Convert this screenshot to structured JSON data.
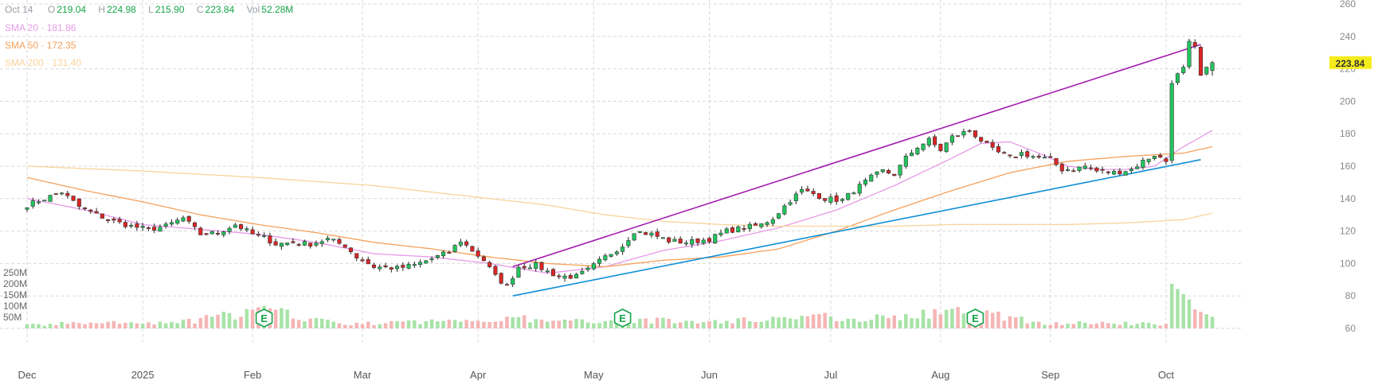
{
  "header": {
    "date": "Oct 14",
    "open_label": "O",
    "open": "219.04",
    "high_label": "H",
    "high": "224.98",
    "low_label": "L",
    "low": "215.90",
    "close_label": "C",
    "close": "223.84",
    "vol_label": "Vol",
    "vol": "52.28M"
  },
  "indicators": [
    {
      "label": "SMA 20",
      "sep": "·",
      "value": "181.86",
      "color": "#e79ae7"
    },
    {
      "label": "SMA 50",
      "sep": "·",
      "value": "172.35",
      "color": "#f5a05a"
    },
    {
      "label": "SMA 200",
      "sep": "·",
      "value": "131.40",
      "color": "#f8d49a"
    }
  ],
  "price_badge": "223.84",
  "colors": {
    "up": "#22c55e",
    "down": "#dc2626",
    "vol_up": "#a7e3a7",
    "vol_down": "#f5b5b5",
    "upper_trend": "#a21caf",
    "lower_trend": "#0e8fd6",
    "badge": "#f5ec1b",
    "grid": "#d9d9d9"
  },
  "chart_data": {
    "type": "candlestick",
    "y_axis": {
      "ticks": [
        60,
        80,
        100,
        120,
        140,
        160,
        180,
        200,
        220,
        240,
        260
      ],
      "range": [
        60,
        260
      ]
    },
    "volume_axis": {
      "ticks": [
        "50M",
        "100M",
        "150M",
        "200M",
        "250M"
      ],
      "values": [
        50,
        100,
        150,
        200,
        250
      ]
    },
    "x_axis": {
      "labels": [
        "Dec",
        "2025",
        "Feb",
        "Mar",
        "Apr",
        "May",
        "Jun",
        "Jul",
        "Aug",
        "Sep",
        "Oct"
      ]
    },
    "x_ticks": [
      {
        "label": "Dec",
        "index": 0
      },
      {
        "label": "2025",
        "index": 20
      },
      {
        "label": "Feb",
        "index": 39
      },
      {
        "label": "Mar",
        "index": 58
      },
      {
        "label": "Apr",
        "index": 78
      },
      {
        "label": "May",
        "index": 98
      },
      {
        "label": "Jun",
        "index": 118
      },
      {
        "label": "Jul",
        "index": 139
      },
      {
        "label": "Aug",
        "index": 158
      },
      {
        "label": "Sep",
        "index": 177
      },
      {
        "label": "Oct",
        "index": 197
      }
    ],
    "earnings_markers": [
      {
        "label": "E",
        "index": 41
      },
      {
        "label": "E",
        "index": 103
      },
      {
        "label": "E",
        "index": 164
      }
    ],
    "trendlines": [
      {
        "name": "upper",
        "from": {
          "index": 84,
          "price": 98
        },
        "to": {
          "index": 203,
          "price": 235
        }
      },
      {
        "name": "lower",
        "from": {
          "index": 84,
          "price": 80
        },
        "to": {
          "index": 203,
          "price": 164
        }
      }
    ],
    "anchors": {
      "close": [
        [
          0,
          136
        ],
        [
          3,
          140
        ],
        [
          6,
          144
        ],
        [
          9,
          135
        ],
        [
          12,
          130
        ],
        [
          15,
          126
        ],
        [
          18,
          123
        ],
        [
          21,
          121
        ],
        [
          24,
          123
        ],
        [
          27,
          128
        ],
        [
          30,
          118
        ],
        [
          33,
          119
        ],
        [
          36,
          124
        ],
        [
          39,
          118
        ],
        [
          41,
          116
        ],
        [
          43,
          112
        ],
        [
          46,
          113
        ],
        [
          49,
          112
        ],
        [
          52,
          115
        ],
        [
          55,
          111
        ],
        [
          57,
          104
        ],
        [
          60,
          98
        ],
        [
          64,
          97
        ],
        [
          67,
          99
        ],
        [
          70,
          103
        ],
        [
          73,
          107
        ],
        [
          75,
          114
        ],
        [
          77,
          108
        ],
        [
          79,
          102
        ],
        [
          81,
          92
        ],
        [
          83,
          86
        ],
        [
          85,
          98
        ],
        [
          88,
          99
        ],
        [
          90,
          95
        ],
        [
          92,
          92
        ],
        [
          95,
          92
        ],
        [
          97,
          96
        ],
        [
          100,
          104
        ],
        [
          103,
          111
        ],
        [
          105,
          120
        ],
        [
          108,
          118
        ],
        [
          111,
          114
        ],
        [
          114,
          113
        ],
        [
          118,
          115
        ],
        [
          121,
          120
        ],
        [
          124,
          122
        ],
        [
          127,
          124
        ],
        [
          129,
          128
        ],
        [
          132,
          139
        ],
        [
          134,
          145
        ],
        [
          136,
          143
        ],
        [
          138,
          140
        ],
        [
          141,
          139
        ],
        [
          143,
          145
        ],
        [
          146,
          153
        ],
        [
          148,
          157
        ],
        [
          150,
          155
        ],
        [
          152,
          165
        ],
        [
          154,
          172
        ],
        [
          156,
          176
        ],
        [
          158,
          170
        ],
        [
          160,
          178
        ],
        [
          163,
          182
        ],
        [
          165,
          176
        ],
        [
          167,
          170
        ],
        [
          170,
          165
        ],
        [
          172,
          168
        ],
        [
          174,
          166
        ],
        [
          177,
          164
        ],
        [
          179,
          158
        ],
        [
          181,
          158
        ],
        [
          183,
          160
        ],
        [
          185,
          157
        ],
        [
          188,
          156
        ],
        [
          191,
          158
        ],
        [
          193,
          163
        ],
        [
          195,
          167
        ],
        [
          197,
          163
        ],
        [
          198,
          211
        ],
        [
          199,
          217
        ],
        [
          200,
          221
        ],
        [
          201,
          237
        ],
        [
          202,
          234
        ],
        [
          203,
          216
        ],
        [
          204,
          221
        ],
        [
          205,
          223.84
        ]
      ],
      "volume": [
        [
          0,
          14
        ],
        [
          10,
          25
        ],
        [
          25,
          22
        ],
        [
          41,
          80
        ],
        [
          55,
          18
        ],
        [
          78,
          38
        ],
        [
          84,
          50
        ],
        [
          90,
          28
        ],
        [
          103,
          40
        ],
        [
          118,
          28
        ],
        [
          135,
          55
        ],
        [
          145,
          45
        ],
        [
          164,
          75
        ],
        [
          175,
          25
        ],
        [
          190,
          22
        ],
        [
          197,
          18
        ],
        [
          198,
          200
        ],
        [
          201,
          130
        ],
        [
          202,
          85
        ],
        [
          205,
          52
        ]
      ],
      "sma20": [
        [
          0,
          140
        ],
        [
          10,
          133
        ],
        [
          20,
          124
        ],
        [
          30,
          121
        ],
        [
          40,
          118
        ],
        [
          50,
          113
        ],
        [
          60,
          106
        ],
        [
          70,
          104
        ],
        [
          80,
          100
        ],
        [
          90,
          94
        ],
        [
          100,
          98
        ],
        [
          110,
          108
        ],
        [
          120,
          114
        ],
        [
          130,
          122
        ],
        [
          140,
          133
        ],
        [
          150,
          148
        ],
        [
          160,
          165
        ],
        [
          165,
          174
        ],
        [
          170,
          175
        ],
        [
          175,
          168
        ],
        [
          180,
          160
        ],
        [
          185,
          158
        ],
        [
          190,
          158
        ],
        [
          195,
          160
        ],
        [
          200,
          172
        ],
        [
          205,
          182
        ]
      ],
      "sma50": [
        [
          0,
          153
        ],
        [
          10,
          145
        ],
        [
          20,
          138
        ],
        [
          30,
          130
        ],
        [
          40,
          124
        ],
        [
          50,
          119
        ],
        [
          60,
          113
        ],
        [
          70,
          109
        ],
        [
          80,
          104
        ],
        [
          90,
          100
        ],
        [
          100,
          98
        ],
        [
          110,
          102
        ],
        [
          120,
          104
        ],
        [
          130,
          109
        ],
        [
          140,
          120
        ],
        [
          150,
          133
        ],
        [
          160,
          145
        ],
        [
          170,
          156
        ],
        [
          180,
          163
        ],
        [
          190,
          166
        ],
        [
          200,
          168
        ],
        [
          205,
          172
        ]
      ],
      "sma200": [
        [
          0,
          160
        ],
        [
          20,
          157
        ],
        [
          40,
          153
        ],
        [
          60,
          148
        ],
        [
          80,
          140
        ],
        [
          90,
          136
        ],
        [
          100,
          130
        ],
        [
          110,
          126
        ],
        [
          120,
          124
        ],
        [
          130,
          123
        ],
        [
          140,
          123
        ],
        [
          150,
          123
        ],
        [
          160,
          124
        ],
        [
          170,
          124
        ],
        [
          180,
          124
        ],
        [
          190,
          125
        ],
        [
          200,
          127
        ],
        [
          205,
          131
        ]
      ]
    }
  }
}
